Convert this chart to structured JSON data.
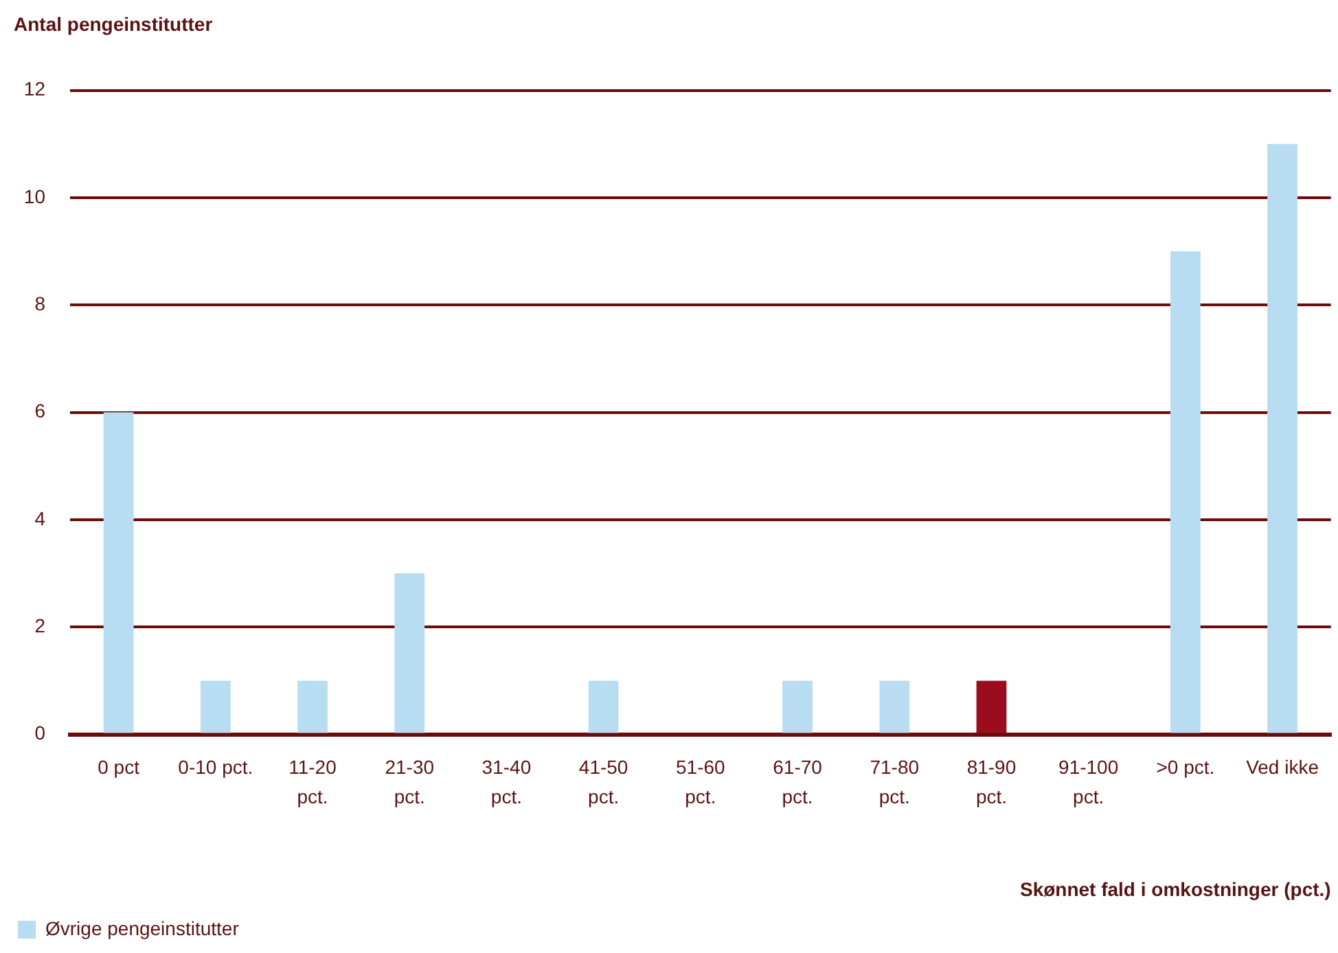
{
  "chart_data": {
    "type": "bar",
    "ylabel": "Antal pengeinstitutter",
    "xlabel": "Skønnet fald i omkostninger (pct.)",
    "categories": [
      "0 pct",
      "0-10 pct.",
      "11-20 pct.",
      "21-30 pct.",
      "31-40 pct.",
      "41-50 pct.",
      "51-60 pct.",
      "61-70 pct.",
      "71-80 pct.",
      "81-90 pct.",
      "91-100 pct.",
      ">0 pct.",
      "Ved ikke"
    ],
    "series": [
      {
        "color": "#9b0d1e",
        "values": [
          null,
          null,
          null,
          null,
          null,
          null,
          null,
          null,
          null,
          1,
          null,
          null,
          null
        ]
      },
      {
        "name": "Øvrige pengeinstitutter",
        "color": "#b8dcf2",
        "values": [
          6,
          1,
          1,
          3,
          0,
          1,
          0,
          1,
          1,
          0,
          0,
          9,
          11
        ]
      }
    ],
    "stacked": true,
    "ylim": [
      0,
      12
    ],
    "yticks": [
      0,
      2,
      4,
      6,
      8,
      10,
      12
    ],
    "grid": "y",
    "legend": "bottom left"
  }
}
